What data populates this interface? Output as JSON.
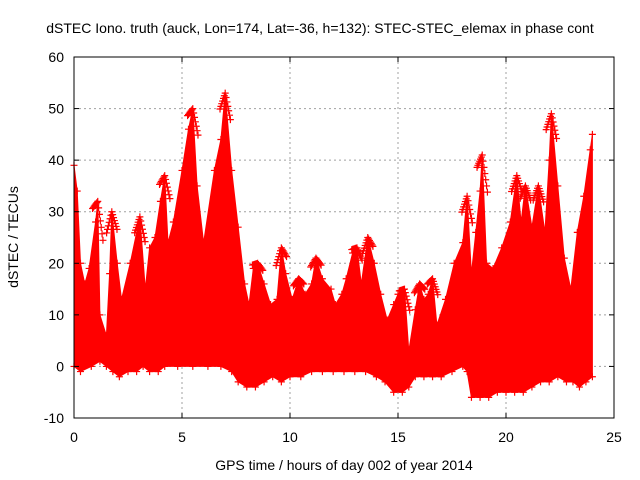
{
  "chart_data": {
    "type": "line",
    "title": "dSTEC Iono. truth (auck, Lon=174, Lat=-36, h=132): STEC-STEC_elemax in phase cont",
    "xlabel": "GPS time / hours of day 002 of year 2014",
    "ylabel": "dSTEC  / TECUs",
    "xlim": [
      0,
      25
    ],
    "ylim": [
      -10,
      60
    ],
    "xticks": [
      "0",
      "5",
      "10",
      "15",
      "20",
      "25"
    ],
    "yticks": [
      "-10",
      "0",
      "10",
      "20",
      "30",
      "40",
      "50",
      "60"
    ],
    "grid": true,
    "legend": "none",
    "series_color": "#ff0000",
    "upper_envelope": [
      [
        0.0,
        39
      ],
      [
        0.15,
        34
      ],
      [
        0.3,
        20
      ],
      [
        0.5,
        16
      ],
      [
        0.7,
        19
      ],
      [
        1.0,
        28
      ],
      [
        1.1,
        32
      ],
      [
        1.2,
        10
      ],
      [
        1.5,
        6
      ],
      [
        1.65,
        18
      ],
      [
        1.75,
        30
      ],
      [
        2.0,
        20
      ],
      [
        2.2,
        13
      ],
      [
        2.6,
        20
      ],
      [
        3.05,
        29
      ],
      [
        3.3,
        15
      ],
      [
        3.5,
        23
      ],
      [
        3.75,
        25
      ],
      [
        4.0,
        32
      ],
      [
        4.2,
        37
      ],
      [
        4.35,
        24
      ],
      [
        4.6,
        28
      ],
      [
        5.0,
        38
      ],
      [
        5.3,
        46
      ],
      [
        5.5,
        50
      ],
      [
        5.7,
        35
      ],
      [
        6.0,
        24
      ],
      [
        6.5,
        38
      ],
      [
        6.8,
        44
      ],
      [
        7.0,
        53
      ],
      [
        7.3,
        38
      ],
      [
        7.6,
        27
      ],
      [
        7.9,
        16
      ],
      [
        8.1,
        12
      ],
      [
        8.3,
        19
      ],
      [
        8.5,
        20
      ],
      [
        8.8,
        16
      ],
      [
        9.1,
        12
      ],
      [
        9.4,
        13
      ],
      [
        9.6,
        23
      ],
      [
        9.8,
        18
      ],
      [
        10.1,
        13
      ],
      [
        10.4,
        17
      ],
      [
        10.7,
        14
      ],
      [
        11.0,
        16
      ],
      [
        11.2,
        21
      ],
      [
        11.5,
        17
      ],
      [
        11.9,
        15
      ],
      [
        12.1,
        12
      ],
      [
        12.4,
        14
      ],
      [
        12.6,
        17
      ],
      [
        12.9,
        22
      ],
      [
        13.1,
        23
      ],
      [
        13.3,
        16
      ],
      [
        13.6,
        25
      ],
      [
        13.9,
        20
      ],
      [
        14.2,
        14
      ],
      [
        14.5,
        9
      ],
      [
        14.8,
        12
      ],
      [
        15.0,
        14
      ],
      [
        15.3,
        15
      ],
      [
        15.5,
        3
      ],
      [
        15.8,
        11
      ],
      [
        16.0,
        16
      ],
      [
        16.2,
        13
      ],
      [
        16.4,
        14
      ],
      [
        16.6,
        17
      ],
      [
        16.8,
        8
      ],
      [
        17.2,
        13
      ],
      [
        17.6,
        20
      ],
      [
        18.0,
        24
      ],
      [
        18.2,
        33
      ],
      [
        18.4,
        18
      ],
      [
        18.6,
        26
      ],
      [
        18.8,
        34
      ],
      [
        18.9,
        41
      ],
      [
        19.1,
        20
      ],
      [
        19.4,
        19
      ],
      [
        19.8,
        23
      ],
      [
        20.2,
        28
      ],
      [
        20.5,
        37
      ],
      [
        20.7,
        28
      ],
      [
        20.9,
        35
      ],
      [
        21.2,
        27
      ],
      [
        21.5,
        35
      ],
      [
        21.8,
        26
      ],
      [
        22.0,
        40
      ],
      [
        22.1,
        49
      ],
      [
        22.4,
        35
      ],
      [
        22.7,
        21
      ],
      [
        23.0,
        15
      ],
      [
        23.3,
        26
      ],
      [
        23.6,
        33
      ],
      [
        23.9,
        42
      ],
      [
        24.0,
        45
      ]
    ],
    "lower_envelope": [
      [
        0.0,
        0
      ],
      [
        0.3,
        -1
      ],
      [
        0.8,
        0
      ],
      [
        1.2,
        1
      ],
      [
        1.5,
        0
      ],
      [
        1.8,
        -1
      ],
      [
        2.1,
        -2
      ],
      [
        2.5,
        -1
      ],
      [
        2.9,
        -1
      ],
      [
        3.2,
        0
      ],
      [
        3.5,
        -1
      ],
      [
        3.9,
        -1
      ],
      [
        4.2,
        0
      ],
      [
        4.8,
        0
      ],
      [
        5.5,
        0
      ],
      [
        6.2,
        0
      ],
      [
        6.8,
        0
      ],
      [
        7.3,
        -1
      ],
      [
        7.6,
        -3
      ],
      [
        8.0,
        -4
      ],
      [
        8.4,
        -4
      ],
      [
        8.8,
        -3
      ],
      [
        9.2,
        -2
      ],
      [
        9.6,
        -3
      ],
      [
        10.0,
        -2
      ],
      [
        10.5,
        -2
      ],
      [
        11.0,
        -1
      ],
      [
        11.5,
        -1
      ],
      [
        12.0,
        -1
      ],
      [
        12.5,
        -1
      ],
      [
        13.0,
        -1
      ],
      [
        13.5,
        -1
      ],
      [
        14.0,
        -2
      ],
      [
        14.4,
        -3
      ],
      [
        14.8,
        -5
      ],
      [
        15.2,
        -5
      ],
      [
        15.5,
        -4
      ],
      [
        15.8,
        -2
      ],
      [
        16.2,
        -2
      ],
      [
        16.6,
        -2
      ],
      [
        17.0,
        -2
      ],
      [
        17.5,
        -1
      ],
      [
        18.0,
        0
      ],
      [
        18.2,
        -1
      ],
      [
        18.4,
        -6
      ],
      [
        18.8,
        -6
      ],
      [
        19.2,
        -6
      ],
      [
        19.6,
        -5
      ],
      [
        20.0,
        -5
      ],
      [
        20.4,
        -5
      ],
      [
        20.8,
        -5
      ],
      [
        21.2,
        -4
      ],
      [
        21.6,
        -3
      ],
      [
        22.0,
        -3
      ],
      [
        22.4,
        -2
      ],
      [
        22.8,
        -3
      ],
      [
        23.1,
        -3
      ],
      [
        23.4,
        -4
      ],
      [
        23.7,
        -3
      ],
      [
        24.0,
        -2
      ]
    ]
  }
}
